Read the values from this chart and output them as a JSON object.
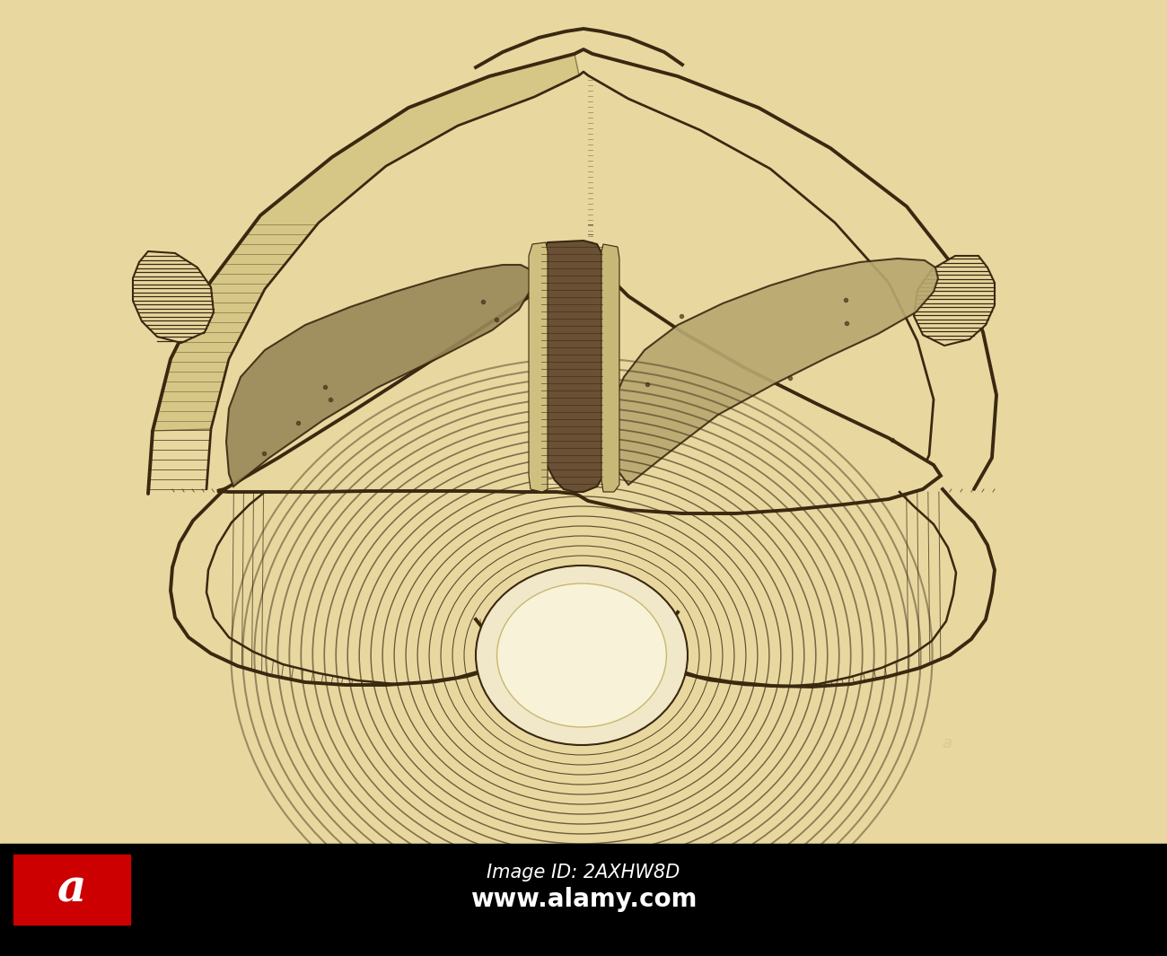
{
  "bg_color": "#E8D8A0",
  "drawing_color": "#3a2810",
  "shading_color": "#6a5030",
  "fig_width": 13.0,
  "fig_height": 10.65,
  "dpi": 100,
  "watermark_text1": "Image ID: 2AXHW8D",
  "watermark_text2": "www.alamy.com",
  "cord_fill": "#9a8858",
  "cord_fill2": "#b8a870",
  "circle_center_color": "#e8d898",
  "line_color": "#2a1808"
}
